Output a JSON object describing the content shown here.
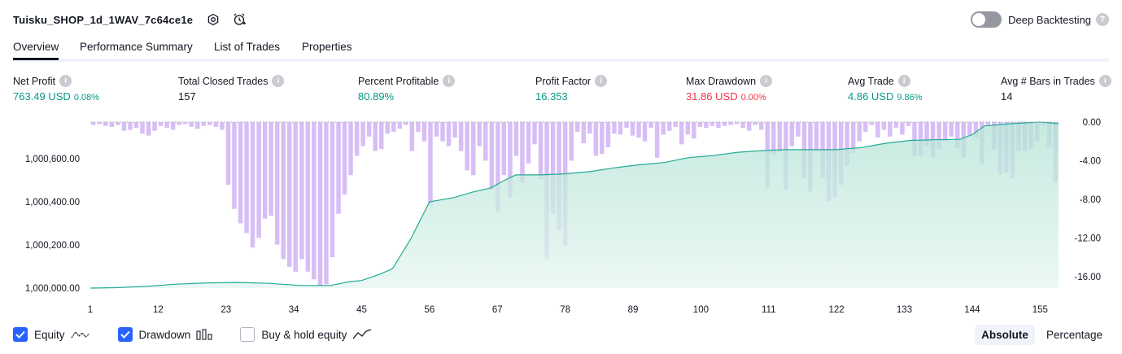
{
  "header": {
    "title": "Tuisku_SHOP_1d_1WAV_7c64ce1e"
  },
  "deep_backtesting": {
    "label": "Deep Backtesting",
    "enabled": false,
    "help": "?"
  },
  "tabs": [
    {
      "label": "Overview",
      "active": true
    },
    {
      "label": "Performance Summary",
      "active": false
    },
    {
      "label": "List of Trades",
      "active": false
    },
    {
      "label": "Properties",
      "active": false
    }
  ],
  "stats": {
    "info_glyph": "i",
    "net_profit": {
      "label": "Net Profit",
      "value": "763.49 USD",
      "pct": "0.08%"
    },
    "total_closed_trades": {
      "label": "Total Closed Trades",
      "value": "157"
    },
    "percent_profitable": {
      "label": "Percent Profitable",
      "value": "80.89%"
    },
    "profit_factor": {
      "label": "Profit Factor",
      "value": "16.353"
    },
    "max_drawdown": {
      "label": "Max Drawdown",
      "value": "31.86 USD",
      "pct": "0.00%"
    },
    "avg_trade": {
      "label": "Avg Trade",
      "value": "4.86 USD",
      "pct": "9.86%"
    },
    "avg_bars": {
      "label": "Avg # Bars in Trades",
      "value": "14"
    }
  },
  "colors": {
    "positive": "#089981",
    "negative": "#f23645",
    "equity_line": "#22ab94",
    "equity_fill": "#c5eadf",
    "drawdown_bar": "#d1b3f5",
    "accent": "#2962ff"
  },
  "legend": [
    {
      "label": "Equity",
      "checked": true,
      "icon": "equity-line-icon"
    },
    {
      "label": "Drawdown",
      "checked": true,
      "icon": "drawdown-bars-icon"
    },
    {
      "label": "Buy & hold equity",
      "checked": false,
      "icon": "buy-hold-line-icon"
    }
  ],
  "modes": [
    {
      "label": "Absolute",
      "active": true
    },
    {
      "label": "Percentage",
      "active": false
    }
  ],
  "chart_data": {
    "type": "area",
    "xlabel": "",
    "x_ticks": [
      1,
      12,
      23,
      34,
      45,
      56,
      67,
      78,
      89,
      100,
      111,
      122,
      133,
      144,
      155
    ],
    "x_range": [
      1,
      158
    ],
    "left_axis": {
      "ticks": [
        1000000,
        1000200,
        1000400,
        1000600
      ],
      "tick_labels": [
        "1,000,000.00",
        "1,000,200.00",
        "1,000,400.00",
        "1,000,600.00"
      ],
      "range": [
        1000000,
        1000770
      ]
    },
    "right_axis": {
      "ticks": [
        0,
        -4,
        -8,
        -12,
        -16
      ],
      "tick_labels": [
        "0.00",
        "-4.00",
        "-8.00",
        "-12.00",
        "-16.00"
      ],
      "range": [
        -17.2,
        0
      ]
    },
    "series": [
      {
        "name": "Equity",
        "type": "area",
        "axis": "left",
        "points": [
          [
            1,
            1000000
          ],
          [
            5,
            1000002
          ],
          [
            10,
            1000008
          ],
          [
            15,
            1000018
          ],
          [
            20,
            1000024
          ],
          [
            25,
            1000026
          ],
          [
            30,
            1000022
          ],
          [
            35,
            1000012
          ],
          [
            40,
            1000012
          ],
          [
            43,
            1000030
          ],
          [
            45,
            1000035
          ],
          [
            48,
            1000065
          ],
          [
            50,
            1000090
          ],
          [
            53,
            1000230
          ],
          [
            56,
            1000400
          ],
          [
            60,
            1000420
          ],
          [
            63,
            1000445
          ],
          [
            66,
            1000465
          ],
          [
            68,
            1000498
          ],
          [
            70,
            1000525
          ],
          [
            74,
            1000525
          ],
          [
            78,
            1000530
          ],
          [
            82,
            1000540
          ],
          [
            86,
            1000558
          ],
          [
            90,
            1000572
          ],
          [
            94,
            1000582
          ],
          [
            98,
            1000605
          ],
          [
            102,
            1000615
          ],
          [
            106,
            1000630
          ],
          [
            110,
            1000638
          ],
          [
            114,
            1000642
          ],
          [
            118,
            1000642
          ],
          [
            122,
            1000642
          ],
          [
            126,
            1000652
          ],
          [
            130,
            1000672
          ],
          [
            134,
            1000685
          ],
          [
            138,
            1000688
          ],
          [
            142,
            1000690
          ],
          [
            144,
            1000712
          ],
          [
            146,
            1000752
          ],
          [
            150,
            1000762
          ],
          [
            155,
            1000770
          ],
          [
            158,
            1000763
          ]
        ]
      },
      {
        "name": "Drawdown",
        "type": "bar",
        "axis": "right",
        "values": [
          -0.3,
          -0.2,
          -0.4,
          -0.5,
          -0.3,
          -0.9,
          -0.8,
          -0.6,
          -1.2,
          -1.4,
          -0.9,
          -0.4,
          -0.6,
          -0.8,
          -0.3,
          -0.2,
          -0.5,
          -0.7,
          -0.4,
          -0.3,
          -0.5,
          -0.8,
          -6.5,
          -9,
          -10.5,
          -11.5,
          -13,
          -12,
          -10,
          -9.7,
          -12.7,
          -14.2,
          -15,
          -15.5,
          -14.2,
          -15.5,
          -16.3,
          -17,
          -16.8,
          -14,
          -9.5,
          -7.5,
          -5.5,
          -3.5,
          -2.5,
          -1.5,
          -3,
          -2.8,
          -1.2,
          -1,
          -0.7,
          -0.3,
          -3,
          -1,
          -2,
          -8.7,
          -1.5,
          -2,
          -2.5,
          -1.6,
          -3,
          -5,
          -5.5,
          -2.5,
          -4,
          -7,
          -9.3,
          -5.5,
          -7.8,
          -3.5,
          -6.3,
          -4.3,
          -2.3,
          -5.9,
          -14.2,
          -9.5,
          -11.2,
          -12.8,
          -4,
          -1,
          -2.2,
          -1.2,
          -3.5,
          -3.3,
          -2.6,
          -1.2,
          -1.3,
          -0.6,
          -1.4,
          -1.6,
          -2,
          -0.6,
          -3.7,
          -1.3,
          -0.9,
          -0.5,
          -2.3,
          -1.3,
          -1.7,
          -0.5,
          -0.6,
          -0.4,
          -0.6,
          -0.4,
          -0.3,
          -0.2,
          -0.6,
          -0.9,
          -0.3,
          -0.8,
          -6.8,
          -3.4,
          -3.1,
          -7,
          -2.5,
          -1.5,
          -5.8,
          -7.2,
          -3,
          -5.8,
          -8.2,
          -7.8,
          -6.5,
          -4.5,
          -3.2,
          -2,
          -1,
          -0.3,
          -1.6,
          -0.8,
          -1.5,
          -0.6,
          -1.3,
          -0.4,
          -3.5,
          -3.5,
          -2.5,
          -3.7,
          -2.8,
          -2,
          -1.5,
          -2.7,
          -3.7,
          -1.4,
          -1.6,
          -4.3,
          -0.3,
          -2.8,
          -5.4,
          -5.2,
          -5.8,
          -3,
          -3,
          -2.8,
          -2,
          -0.3,
          -2.6,
          -6.2
        ]
      }
    ]
  }
}
